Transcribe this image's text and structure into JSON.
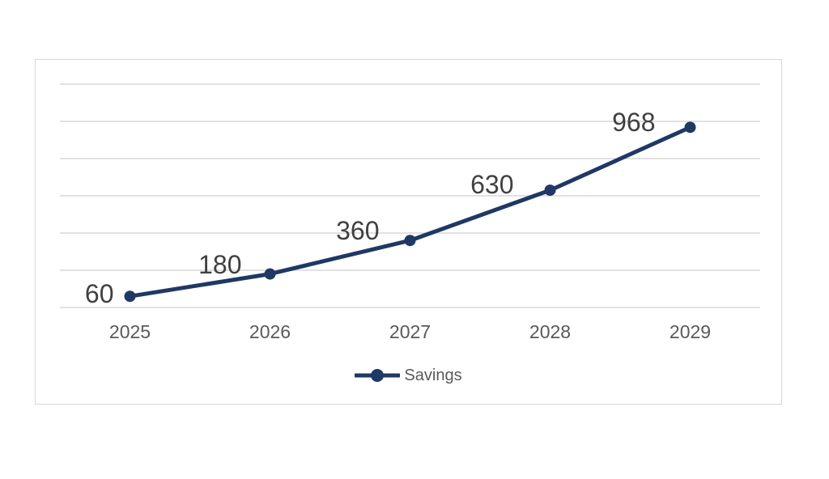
{
  "chart_data": {
    "type": "line",
    "title": "",
    "categories": [
      "2025",
      "2026",
      "2027",
      "2028",
      "2029"
    ],
    "series": [
      {
        "name": "Savings",
        "values": [
          60,
          180,
          360,
          630,
          968
        ],
        "color": "#1F3864"
      }
    ],
    "data_labels": [
      "60",
      "180",
      "360",
      "630",
      "968"
    ],
    "xlabel": "",
    "ylabel": "",
    "ylim": [
      0,
      1200
    ],
    "grid_step": 200,
    "grid": true,
    "legend_position": "bottom",
    "marker": "circle",
    "colors": {
      "line": "#1F3864",
      "gridline": "#D9D9D9",
      "frame_border": "#D9D9D9",
      "axis_labels": "#595959",
      "data_labels": "#404040",
      "legend_text": "#595959",
      "background": "#FFFFFF"
    }
  }
}
